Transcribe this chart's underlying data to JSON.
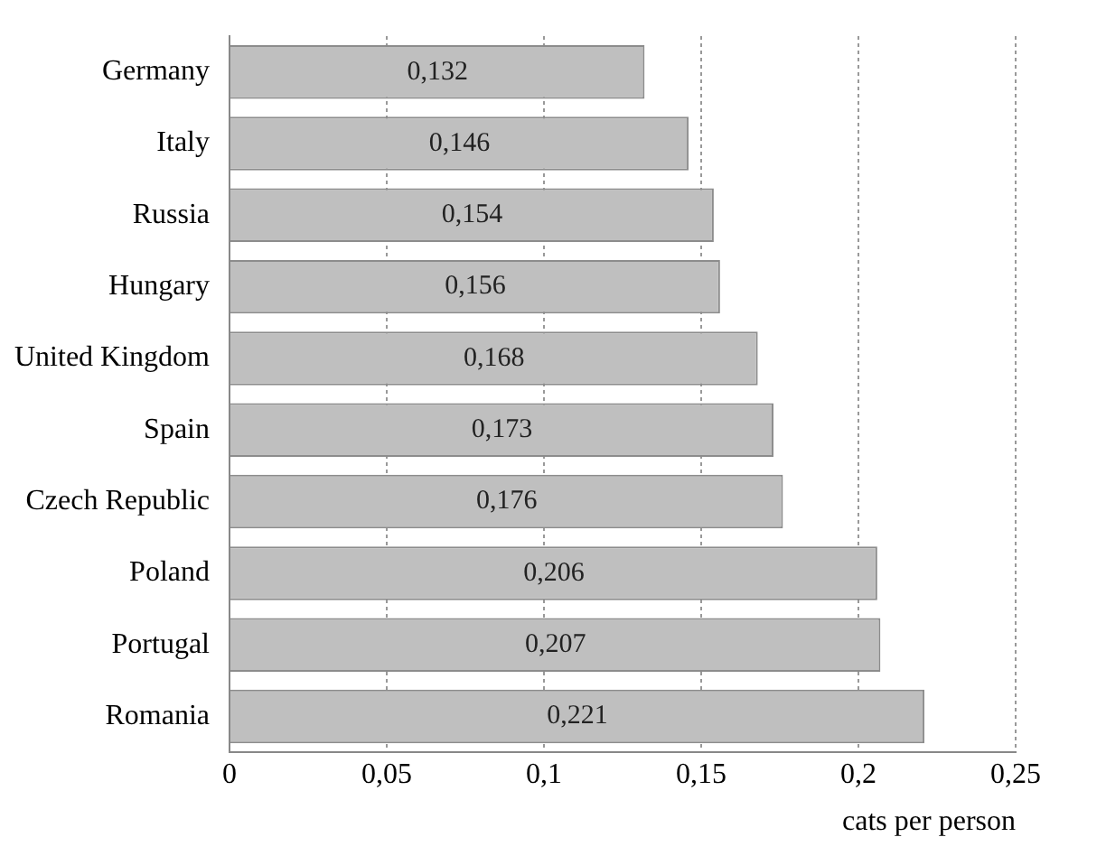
{
  "chart_data": {
    "type": "bar",
    "orientation": "horizontal",
    "xlabel": "cats per person",
    "categories": [
      "Germany",
      "Italy",
      "Russia",
      "Hungary",
      "United Kingdom",
      "Spain",
      "Czech Republic",
      "Poland",
      "Portugal",
      "Romania"
    ],
    "values": [
      0.132,
      0.146,
      0.154,
      0.156,
      0.168,
      0.173,
      0.176,
      0.206,
      0.207,
      0.221
    ],
    "value_labels": [
      "0,132",
      "0,146",
      "0,154",
      "0,156",
      "0,168",
      "0,173",
      "0,176",
      "0,206",
      "0,207",
      "0,221"
    ],
    "color": "#bfbfbf",
    "xlim": [
      0,
      0.25
    ],
    "xticks": [
      0,
      {
        "value": 0.05,
        "label": "0,05"
      },
      {
        "value": 0.1,
        "label": "0,1"
      },
      {
        "value": 0.15,
        "label": "0,15"
      },
      {
        "value": 0.2,
        "label": "0,2"
      },
      {
        "value": 0.25,
        "label": "0,25"
      }
    ],
    "grid": "x",
    "legend": false
  }
}
